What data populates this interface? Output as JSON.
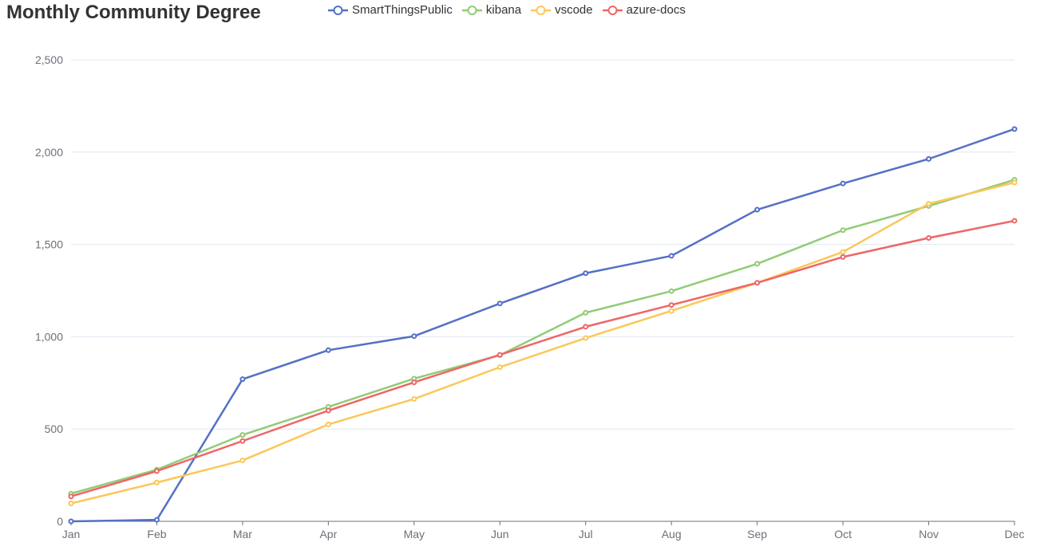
{
  "chart_data": {
    "type": "line",
    "title": "Monthly Community Degree",
    "categories": [
      "Jan",
      "Feb",
      "Mar",
      "Apr",
      "May",
      "Jun",
      "Jul",
      "Aug",
      "Sep",
      "Oct",
      "Nov",
      "Dec"
    ],
    "y_ticks": [
      "0",
      "500",
      "1,000",
      "1,500",
      "2,000",
      "2,500"
    ],
    "ylim": [
      0,
      2500
    ],
    "grid": true,
    "legend_position": "top",
    "series": [
      {
        "name": "SmartThingsPublic",
        "color": "#5470c6",
        "values": [
          0,
          8,
          770,
          927,
          1003,
          1180,
          1344,
          1438,
          1688,
          1830,
          1963,
          2125
        ]
      },
      {
        "name": "kibana",
        "color": "#91cc75",
        "values": [
          150,
          280,
          468,
          620,
          773,
          900,
          1130,
          1247,
          1395,
          1577,
          1708,
          1850
        ]
      },
      {
        "name": "vscode",
        "color": "#fac858",
        "values": [
          97,
          210,
          330,
          525,
          663,
          835,
          993,
          1140,
          1292,
          1459,
          1720,
          1835
        ]
      },
      {
        "name": "azure-docs",
        "color": "#ee6666",
        "values": [
          135,
          272,
          435,
          600,
          753,
          902,
          1054,
          1172,
          1292,
          1432,
          1535,
          1628
        ]
      }
    ]
  }
}
